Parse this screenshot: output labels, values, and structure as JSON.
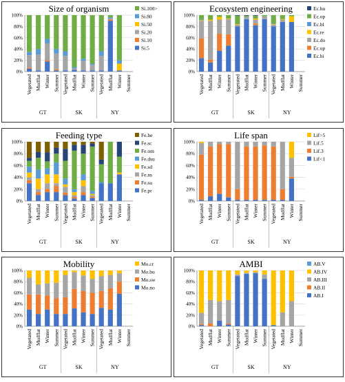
{
  "colors": {
    "blue": "#4472C4",
    "orange": "#ED7D31",
    "gray": "#A5A5A5",
    "yellow": "#FFC000",
    "lightblue": "#5B9BD5",
    "green": "#70AD47",
    "darkblue": "#264478",
    "brown": "#7F6000"
  },
  "chart_data": [
    {
      "type": "bar",
      "stacked": true,
      "title": "Size of organism",
      "categories": [
        "Vegetated",
        "Mudflat",
        "Winter",
        "Summer",
        "Vegetated",
        "Mudflat",
        "Winter",
        "Summer",
        "Vegetated",
        "Mudflat",
        "Winter",
        "Summer"
      ],
      "groups": [
        "GT",
        "SK",
        "NY"
      ],
      "yticks": [
        "0%",
        "20%",
        "40%",
        "60%",
        "80%",
        "100%"
      ],
      "ylim": [
        0,
        100
      ],
      "legend_placement": "right",
      "series": [
        {
          "name": "Si.5",
          "color": "blue",
          "values": [
            5,
            2,
            18,
            2,
            2,
            3,
            2,
            2,
            2,
            90,
            2,
            0
          ]
        },
        {
          "name": "Si.10",
          "color": "orange",
          "values": [
            2,
            0,
            2,
            2,
            0,
            0,
            0,
            0,
            0,
            2,
            0,
            0
          ]
        },
        {
          "name": "Si.20",
          "color": "gray",
          "values": [
            22,
            28,
            30,
            28,
            26,
            3,
            17,
            10,
            26,
            2,
            0,
            0
          ]
        },
        {
          "name": "Si.50",
          "color": "yellow",
          "values": [
            0,
            0,
            0,
            0,
            0,
            0,
            0,
            0,
            0,
            0,
            12,
            0
          ]
        },
        {
          "name": "Si.80",
          "color": "lightblue",
          "values": [
            6,
            10,
            8,
            8,
            8,
            2,
            4,
            2,
            8,
            2,
            6,
            0
          ]
        },
        {
          "name": "Si.100>",
          "color": "green",
          "values": [
            65,
            60,
            42,
            60,
            64,
            92,
            77,
            86,
            64,
            4,
            80,
            0
          ]
        }
      ]
    },
    {
      "type": "bar",
      "stacked": true,
      "title": "Ecosystem engineering",
      "categories": [
        "Vegetated",
        "Mudflat",
        "Winter",
        "Summer",
        "Vegetated",
        "Mudflat",
        "Winter",
        "Summer",
        "Vegetated",
        "Mudflat",
        "Winter",
        "Summer"
      ],
      "groups": [
        "GT",
        "SK",
        "NY"
      ],
      "yticks": [
        "0%",
        "20%",
        "40%",
        "60%",
        "80%",
        "100%"
      ],
      "ylim": [
        0,
        100
      ],
      "legend_placement": "right",
      "series": [
        {
          "name": "Ec.bi",
          "color": "blue",
          "values": [
            24,
            16,
            37,
            46,
            80,
            93,
            82,
            93,
            80,
            88,
            88,
            0
          ]
        },
        {
          "name": "Ec.up",
          "color": "orange",
          "values": [
            35,
            5,
            30,
            20,
            0,
            0,
            3,
            0,
            0,
            0,
            0,
            0
          ]
        },
        {
          "name": "Ec.do",
          "color": "gray",
          "values": [
            31,
            69,
            25,
            27,
            3,
            4,
            7,
            5,
            3,
            4,
            0,
            0
          ]
        },
        {
          "name": "Ec.re",
          "color": "yellow",
          "values": [
            1,
            2,
            5,
            1,
            1,
            0,
            2,
            0,
            1,
            1,
            10,
            0
          ]
        },
        {
          "name": "Ec.bl",
          "color": "lightblue",
          "values": [
            1,
            0,
            0,
            0,
            0,
            0,
            0,
            0,
            1,
            0,
            0,
            0
          ]
        },
        {
          "name": "Ec.op",
          "color": "green",
          "values": [
            8,
            8,
            3,
            6,
            15,
            2,
            5,
            2,
            15,
            7,
            2,
            0
          ]
        },
        {
          "name": "Ec.hu",
          "color": "darkblue",
          "values": [
            0,
            0,
            0,
            0,
            1,
            1,
            1,
            0,
            0,
            0,
            0,
            0
          ]
        }
      ]
    },
    {
      "type": "bar",
      "stacked": true,
      "title": "Feeding type",
      "categories": [
        "Vegetated",
        "Mudflat",
        "Winter",
        "Summer",
        "Vegetated",
        "Mudflat",
        "Winter",
        "Summer",
        "Vegetated",
        "Mudflat",
        "Winter",
        "Summer"
      ],
      "groups": [
        "GT",
        "SK",
        "NY"
      ],
      "yticks": [
        "0%",
        "20%",
        "40%",
        "60%",
        "80%",
        "100%"
      ],
      "ylim": [
        0,
        100
      ],
      "legend_placement": "right",
      "series": [
        {
          "name": "Fe.pr",
          "color": "blue",
          "values": [
            30,
            10,
            15,
            15,
            10,
            4,
            10,
            5,
            30,
            30,
            45,
            0
          ]
        },
        {
          "name": "Fe.su",
          "color": "orange",
          "values": [
            5,
            5,
            5,
            10,
            4,
            3,
            5,
            2,
            0,
            0,
            0,
            0
          ]
        },
        {
          "name": "Fe.ns",
          "color": "gray",
          "values": [
            5,
            5,
            10,
            5,
            10,
            3,
            10,
            3,
            0,
            0,
            0,
            0
          ]
        },
        {
          "name": "Fe.sd",
          "color": "yellow",
          "values": [
            8,
            18,
            15,
            15,
            4,
            5,
            10,
            2,
            0,
            0,
            3,
            0
          ]
        },
        {
          "name": "Fe.dsu",
          "color": "lightblue",
          "values": [
            10,
            15,
            10,
            20,
            10,
            5,
            10,
            5,
            2,
            0,
            0,
            0
          ]
        },
        {
          "name": "Fe.om",
          "color": "green",
          "values": [
            10,
            20,
            12,
            15,
            30,
            65,
            35,
            75,
            30,
            70,
            27,
            0
          ]
        },
        {
          "name": "Fe.sc",
          "color": "darkblue",
          "values": [
            5,
            10,
            15,
            10,
            20,
            10,
            15,
            5,
            8,
            0,
            25,
            0
          ]
        },
        {
          "name": "Fe.he",
          "color": "brown",
          "values": [
            27,
            17,
            18,
            10,
            12,
            5,
            5,
            3,
            30,
            0,
            0,
            0
          ]
        }
      ]
    },
    {
      "type": "bar",
      "stacked": true,
      "title": "Life span",
      "categories": [
        "Vegetated",
        "Mudflat",
        "Winter",
        "Summer",
        "Vegetated",
        "Mudflat",
        "Winter",
        "Summer",
        "Vegetated",
        "Mudflat",
        "Winter",
        "Summer"
      ],
      "groups": [
        "GT",
        "SK",
        "NY"
      ],
      "yticks": [
        "0%",
        "20%",
        "40%",
        "60%",
        "80%",
        "100%"
      ],
      "ylim": [
        0,
        100
      ],
      "legend_placement": "right",
      "series": [
        {
          "name": "Lif<1",
          "color": "blue",
          "values": [
            2,
            8,
            12,
            6,
            2,
            2,
            2,
            2,
            2,
            2,
            38,
            0
          ]
        },
        {
          "name": "Lif.3",
          "color": "orange",
          "values": [
            76,
            84,
            84,
            90,
            18,
            90,
            90,
            92,
            90,
            18,
            3,
            0
          ]
        },
        {
          "name": "Lif.5",
          "color": "gray",
          "values": [
            20,
            8,
            4,
            4,
            80,
            8,
            8,
            6,
            8,
            80,
            32,
            0
          ]
        },
        {
          "name": "Lif>5",
          "color": "yellow",
          "values": [
            2,
            0,
            0,
            0,
            0,
            0,
            0,
            0,
            0,
            0,
            27,
            0
          ]
        }
      ]
    },
    {
      "type": "bar",
      "stacked": true,
      "title": "Mobility",
      "categories": [
        "Vegetated",
        "Mudflat",
        "Winter",
        "Summer",
        "Vegetated",
        "Mudflat",
        "Winter",
        "Summer",
        "Vegetated",
        "Mudflat",
        "Winter",
        "Summer"
      ],
      "groups": [
        "GT",
        "SK",
        "NY"
      ],
      "yticks": [
        "0%",
        "20%",
        "40%",
        "60%",
        "80%",
        "100%"
      ],
      "ylim": [
        0,
        100
      ],
      "legend_placement": "right",
      "series": [
        {
          "name": "Mo.no",
          "color": "blue",
          "values": [
            30,
            22,
            30,
            22,
            22,
            32,
            25,
            22,
            33,
            30,
            58,
            0
          ]
        },
        {
          "name": "Mo.sw",
          "color": "orange",
          "values": [
            27,
            35,
            25,
            28,
            30,
            35,
            38,
            38,
            30,
            38,
            22,
            0
          ]
        },
        {
          "name": "Mo.bu",
          "color": "gray",
          "values": [
            30,
            18,
            22,
            28,
            40,
            30,
            28,
            25,
            27,
            24,
            15,
            0
          ]
        },
        {
          "name": "Mo.cr",
          "color": "yellow",
          "values": [
            13,
            25,
            23,
            22,
            8,
            3,
            9,
            15,
            10,
            8,
            5,
            0
          ]
        }
      ]
    },
    {
      "type": "bar",
      "stacked": true,
      "title": "AMBI",
      "categories": [
        "Vegetated",
        "Mudflat",
        "Winter",
        "Summer",
        "Vegetated",
        "Mudflat",
        "Winter",
        "Summer",
        "Vegetated",
        "Mudflat",
        "Winter",
        "Summer"
      ],
      "groups": [
        "GT",
        "SK",
        "NY"
      ],
      "yticks": [
        "0%",
        "20%",
        "40%",
        "60%",
        "80%",
        "100%"
      ],
      "ylim": [
        0,
        100
      ],
      "legend_placement": "right",
      "series": [
        {
          "name": "AB.I",
          "color": "blue",
          "values": [
            2,
            0,
            10,
            3,
            90,
            94,
            95,
            85,
            2,
            0,
            0,
            0
          ]
        },
        {
          "name": "AB.II",
          "color": "orange",
          "values": [
            2,
            5,
            0,
            2,
            0,
            0,
            0,
            0,
            0,
            0,
            0,
            0
          ]
        },
        {
          "name": "AB.III",
          "color": "gray",
          "values": [
            20,
            42,
            35,
            42,
            3,
            2,
            2,
            8,
            0,
            25,
            45,
            0
          ]
        },
        {
          "name": "AB.IV",
          "color": "yellow",
          "values": [
            76,
            53,
            55,
            53,
            7,
            4,
            3,
            7,
            98,
            75,
            55,
            0
          ]
        },
        {
          "name": "AB.V",
          "color": "lightblue",
          "values": [
            0,
            0,
            0,
            0,
            0,
            0,
            0,
            0,
            0,
            0,
            0,
            0
          ]
        }
      ]
    }
  ]
}
